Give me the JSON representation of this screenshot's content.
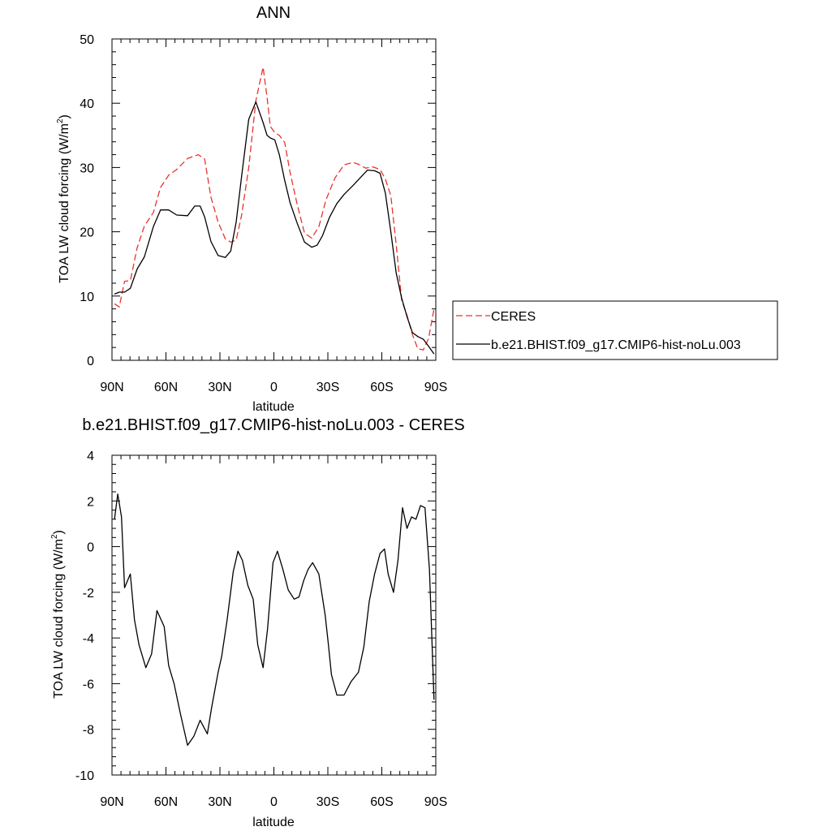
{
  "chart_data": [
    {
      "type": "line",
      "title": "ANN",
      "xlabel": "latitude",
      "ylabel": "TOA LW cloud forcing (W/m",
      "ylabel_sup": "2",
      "ylabel_suffix": ")",
      "xlim": [
        90,
        -90
      ],
      "ylim": [
        0,
        50
      ],
      "xticks": [
        90,
        60,
        30,
        0,
        -30,
        -60,
        -90
      ],
      "xtick_labels": [
        "90N",
        "60N",
        "30N",
        "0",
        "30S",
        "60S",
        "90S"
      ],
      "yticks": [
        0,
        10,
        20,
        30,
        40,
        50
      ],
      "ytick_labels": [
        "0",
        "10",
        "20",
        "30",
        "40",
        "50"
      ],
      "grid": false,
      "legend_position": "outside-right",
      "series": [
        {
          "name": "CERES",
          "color": "#e8332f",
          "dash": "dashed",
          "x": [
            88.6,
            86.0,
            83.0,
            79.8,
            76.0,
            72.0,
            67.0,
            63.0,
            58.5,
            54.0,
            48.0,
            42.0,
            38.5,
            35.0,
            31.0,
            27.0,
            24.0,
            21.0,
            18.0,
            14.0,
            10.0,
            6.0,
            3.8,
            2.0,
            -0.5,
            -3.0,
            -6.0,
            -9.0,
            -13.0,
            -17.0,
            -21.0,
            -25.0,
            -29.0,
            -34.0,
            -39.0,
            -44.0,
            -47.0,
            -51.0,
            -55.0,
            -59.0,
            -62.0,
            -65.0,
            -68.0,
            -71.0,
            -74.0,
            -77.0,
            -80.0,
            -83.0,
            -86.0,
            -89.0
          ],
          "y": [
            8.8,
            8.3,
            12.3,
            12.4,
            17.5,
            20.9,
            23.0,
            26.9,
            28.8,
            29.7,
            31.4,
            32.0,
            31.3,
            25.4,
            21.5,
            18.9,
            18.4,
            18.7,
            22.5,
            30.0,
            40.4,
            45.6,
            40.9,
            36.4,
            35.4,
            35.0,
            33.9,
            29.2,
            24.2,
            19.8,
            19.0,
            20.8,
            25.0,
            28.4,
            30.4,
            30.8,
            30.5,
            29.9,
            30.1,
            29.7,
            28.2,
            25.6,
            18.0,
            9.4,
            7.0,
            4.0,
            1.8,
            1.6,
            3.4,
            8.0
          ]
        },
        {
          "name": "b.e21.BHIST.f09_g17.CMIP6-hist-noLu.003",
          "color": "#000000",
          "dash": "solid",
          "x": [
            88.6,
            86.0,
            83.0,
            79.8,
            76.0,
            72.0,
            67.0,
            63.0,
            58.5,
            54.0,
            48.0,
            44.0,
            41.0,
            38.5,
            35.0,
            31.0,
            27.0,
            24.0,
            21.0,
            18.0,
            14.0,
            10.0,
            6.0,
            3.8,
            2.0,
            -0.5,
            -3.0,
            -6.0,
            -9.0,
            -13.0,
            -17.0,
            -21.0,
            -24.0,
            -27.0,
            -31.0,
            -35.0,
            -39.0,
            -44.0,
            -48.0,
            -52.0,
            -56.0,
            -59.0,
            -62.0,
            -65.0,
            -68.0,
            -71.0,
            -74.0,
            -77.0,
            -80.0,
            -83.0,
            -86.0,
            -89.0
          ],
          "y": [
            10.3,
            10.6,
            10.6,
            11.2,
            14.2,
            16.1,
            20.8,
            23.4,
            23.4,
            22.6,
            22.5,
            24.0,
            24.0,
            22.3,
            18.5,
            16.3,
            16.0,
            17.0,
            21.5,
            28.5,
            37.5,
            40.2,
            37.0,
            35.0,
            34.6,
            34.3,
            32.0,
            28.0,
            24.5,
            21.3,
            18.4,
            17.6,
            17.9,
            19.4,
            22.3,
            24.4,
            25.8,
            27.2,
            28.4,
            29.6,
            29.5,
            29.1,
            26.0,
            20.0,
            13.6,
            9.7,
            6.8,
            4.3,
            3.7,
            3.3,
            2.2,
            1.0
          ]
        }
      ]
    },
    {
      "type": "line",
      "title": "b.e21.BHIST.f09_g17.CMIP6-hist-noLu.003 - CERES",
      "xlabel": "latitude",
      "ylabel": "TOA LW cloud forcing (W/m",
      "ylabel_sup": "2",
      "ylabel_suffix": ")",
      "xlim": [
        90,
        -90
      ],
      "ylim": [
        -10,
        4
      ],
      "xticks": [
        90,
        60,
        30,
        0,
        -30,
        -60,
        -90
      ],
      "xtick_labels": [
        "90N",
        "60N",
        "30N",
        "0",
        "30S",
        "60S",
        "90S"
      ],
      "yticks": [
        -10,
        -8,
        -6,
        -4,
        -2,
        0,
        2,
        4
      ],
      "ytick_labels": [
        "-10",
        "-8",
        "-6",
        "-4",
        "-2",
        "0",
        "2",
        "4"
      ],
      "grid": false,
      "series": [
        {
          "color": "#000000",
          "dash": "solid",
          "x": [
            88.6,
            86.8,
            84.7,
            83.0,
            79.8,
            77.5,
            75.0,
            71.2,
            68.0,
            65.0,
            61.0,
            58.5,
            55.5,
            52.0,
            48.0,
            44.5,
            41.0,
            37.0,
            34.5,
            31.0,
            29.0,
            26.0,
            22.6,
            20.0,
            17.5,
            14.5,
            11.5,
            9.0,
            6.0,
            3.5,
            0.5,
            -2.0,
            -5.0,
            -8.0,
            -11.3,
            -14.0,
            -16.5,
            -19.0,
            -21.5,
            -25.0,
            -28.5,
            -30.3,
            -32.0,
            -35.0,
            -39.0,
            -43.0,
            -47.0,
            -50.0,
            -53.0,
            -56.0,
            -59.0,
            -61.5,
            -63.5,
            -66.5,
            -69.0,
            -71.5,
            -74.0,
            -76.5,
            -79.0,
            -81.5,
            -84.0,
            -86.5,
            -89.0
          ],
          "y": [
            1.2,
            2.3,
            1.3,
            -1.8,
            -1.2,
            -3.2,
            -4.3,
            -5.3,
            -4.7,
            -2.8,
            -3.5,
            -5.2,
            -6.0,
            -7.3,
            -8.7,
            -8.3,
            -7.6,
            -8.2,
            -7.0,
            -5.5,
            -4.8,
            -3.2,
            -1.1,
            -0.2,
            -0.6,
            -1.7,
            -2.3,
            -4.3,
            -5.3,
            -3.6,
            -0.7,
            -0.2,
            -1.0,
            -1.9,
            -2.3,
            -2.2,
            -1.5,
            -1.0,
            -0.7,
            -1.2,
            -3.0,
            -4.3,
            -5.6,
            -6.5,
            -6.5,
            -5.9,
            -5.5,
            -4.4,
            -2.4,
            -1.2,
            -0.3,
            -0.1,
            -1.2,
            -2.0,
            -0.6,
            1.7,
            0.8,
            1.3,
            1.2,
            1.8,
            1.7,
            -1.0,
            -6.7
          ]
        }
      ]
    }
  ]
}
